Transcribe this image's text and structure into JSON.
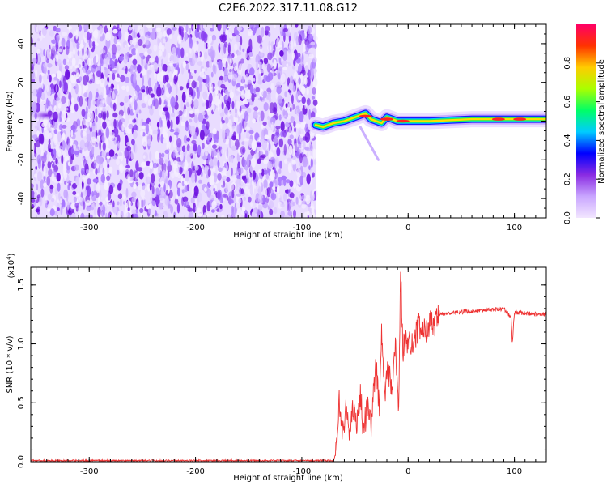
{
  "title": "C2E6.2022.317.11.08.G12",
  "chart_data": [
    {
      "type": "heatmap",
      "name": "spectrogram",
      "xlabel": "Height of straight line (km)",
      "ylabel": "Frequency (Hz)",
      "xlim": [
        -355,
        130
      ],
      "ylim": [
        -50,
        50
      ],
      "xticks": [
        -300,
        -200,
        -100,
        0,
        100
      ],
      "yticks": [
        -40,
        -20,
        0,
        20,
        40
      ],
      "colorbar": {
        "label": "Normalized spectral amplitude",
        "range": [
          0,
          1
        ],
        "ticks": [
          "0.0",
          "0.2",
          "0.4",
          "0.6",
          "0.8"
        ],
        "colormap": [
          "#f2e6ff",
          "#c9a6ff",
          "#8a2be2",
          "#0000ff",
          "#00ccff",
          "#00ff66",
          "#aaff00",
          "#ffcc00",
          "#ff3300",
          "#ff0066"
        ]
      },
      "noise_region_x": [
        -355,
        -87
      ],
      "signal_track": [
        {
          "x": -87,
          "f": -2
        },
        {
          "x": -80,
          "f": -3
        },
        {
          "x": -70,
          "f": -1
        },
        {
          "x": -60,
          "f": 0
        },
        {
          "x": -50,
          "f": 2
        },
        {
          "x": -40,
          "f": 4
        },
        {
          "x": -35,
          "f": 1
        },
        {
          "x": -25,
          "f": -1
        },
        {
          "x": -20,
          "f": 2
        },
        {
          "x": -10,
          "f": 0
        },
        {
          "x": 0,
          "f": 0
        },
        {
          "x": 20,
          "f": 0
        },
        {
          "x": 40,
          "f": 0.5
        },
        {
          "x": 60,
          "f": 1
        },
        {
          "x": 80,
          "f": 1
        },
        {
          "x": 100,
          "f": 1
        },
        {
          "x": 130,
          "f": 1
        }
      ],
      "bright_spots": [
        {
          "x": -40,
          "f": 2.5
        },
        {
          "x": -20,
          "f": 1
        },
        {
          "x": -5,
          "f": 0
        },
        {
          "x": 85,
          "f": 1
        },
        {
          "x": 105,
          "f": 1
        }
      ],
      "faint_blob": {
        "x": -340,
        "f": 3
      }
    },
    {
      "type": "line",
      "name": "snr",
      "xlabel": "Height of straight line (km)",
      "ylabel": "SNR (10 * v/v)",
      "ylabel_multiplier": "(x10",
      "ylabel_exponent": "4",
      "ylabel_close": ")",
      "xlim": [
        -355,
        130
      ],
      "ylim": [
        0,
        1.65
      ],
      "xticks": [
        -300,
        -200,
        -100,
        0,
        100
      ],
      "yticks": [
        "0.0",
        "0.5",
        "1.0",
        "1.5"
      ],
      "color": "#ee3333",
      "series": [
        {
          "points": [
            [
              -355,
              0.01
            ],
            [
              -300,
              0.01
            ],
            [
              -200,
              0.01
            ],
            [
              -100,
              0.01
            ],
            [
              -70,
              0.01
            ],
            [
              -67,
              0.1
            ],
            [
              -65,
              0.55
            ],
            [
              -62,
              0.25
            ],
            [
              -58,
              0.45
            ],
            [
              -55,
              0.2
            ],
            [
              -52,
              0.5
            ],
            [
              -48,
              0.3
            ],
            [
              -45,
              0.6
            ],
            [
              -42,
              0.25
            ],
            [
              -38,
              0.5
            ],
            [
              -35,
              0.3
            ],
            [
              -30,
              0.85
            ],
            [
              -27,
              0.4
            ],
            [
              -25,
              1.1
            ],
            [
              -22,
              0.55
            ],
            [
              -19,
              0.8
            ],
            [
              -15,
              0.6
            ],
            [
              -12,
              1.0
            ],
            [
              -9,
              0.45
            ],
            [
              -7,
              1.62
            ],
            [
              -5,
              0.95
            ],
            [
              0,
              1.05
            ],
            [
              5,
              1.0
            ],
            [
              10,
              1.15
            ],
            [
              15,
              1.1
            ],
            [
              20,
              1.18
            ],
            [
              25,
              1.15
            ],
            [
              30,
              1.25
            ],
            [
              40,
              1.26
            ],
            [
              60,
              1.28
            ],
            [
              80,
              1.29
            ],
            [
              90,
              1.3
            ],
            [
              97,
              1.22
            ],
            [
              98,
              1.0
            ],
            [
              100,
              1.27
            ],
            [
              110,
              1.26
            ],
            [
              130,
              1.25
            ]
          ]
        }
      ]
    }
  ]
}
